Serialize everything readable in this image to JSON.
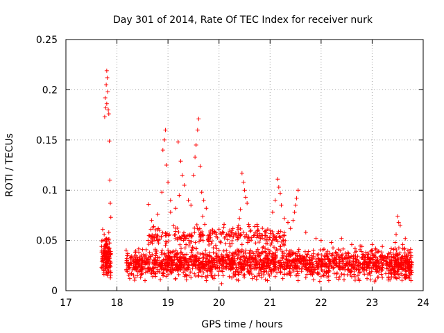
{
  "chart_data": {
    "type": "scatter",
    "title": "Day 301 of 2014, Rate Of TEC Index for receiver nurk",
    "xlabel": "GPS time / hours",
    "ylabel": "ROTI / TECUs",
    "xlim": [
      17,
      24
    ],
    "ylim": [
      0,
      0.25
    ],
    "xticks": [
      17,
      18,
      19,
      20,
      21,
      22,
      23,
      24
    ],
    "yticks": [
      0,
      0.05,
      0.1,
      0.15,
      0.2,
      0.25
    ],
    "xtick_labels": [
      "17",
      "18",
      "19",
      "20",
      "21",
      "22",
      "23",
      "24"
    ],
    "ytick_labels": [
      "0",
      "0.05",
      "0.1",
      "0.15",
      "0.2",
      "0.25"
    ],
    "grid": true,
    "marker": "+",
    "color": "#ff0000",
    "series": [
      {
        "name": "ROTI",
        "points": [
          [
            17.7,
            0.044
          ],
          [
            17.72,
            0.03
          ],
          [
            17.74,
            0.02
          ],
          [
            17.75,
            0.056
          ],
          [
            17.76,
            0.038
          ],
          [
            17.78,
            0.024
          ],
          [
            17.8,
            0.049
          ],
          [
            17.81,
            0.015
          ],
          [
            17.83,
            0.034
          ],
          [
            17.85,
            0.042
          ],
          [
            17.86,
            0.027
          ],
          [
            17.88,
            0.018
          ],
          [
            17.72,
            0.061
          ],
          [
            17.79,
            0.052
          ],
          [
            17.84,
            0.058
          ],
          [
            17.76,
            0.173
          ],
          [
            17.78,
            0.182
          ],
          [
            17.79,
            0.205
          ],
          [
            17.8,
            0.219
          ],
          [
            17.81,
            0.212
          ],
          [
            17.82,
            0.198
          ],
          [
            17.83,
            0.18
          ],
          [
            17.84,
            0.176
          ],
          [
            17.85,
            0.149
          ],
          [
            17.86,
            0.11
          ],
          [
            17.87,
            0.087
          ],
          [
            17.88,
            0.073
          ],
          [
            17.8,
            0.186
          ],
          [
            17.77,
            0.192
          ],
          [
            18.2,
            0.035
          ],
          [
            18.35,
            0.028
          ],
          [
            18.5,
            0.041
          ],
          [
            18.65,
            0.022
          ],
          [
            18.8,
            0.033
          ],
          [
            18.95,
            0.045
          ],
          [
            19.1,
            0.03
          ],
          [
            19.25,
            0.038
          ],
          [
            19.4,
            0.026
          ],
          [
            19.55,
            0.042
          ],
          [
            19.7,
            0.036
          ],
          [
            19.85,
            0.029
          ],
          [
            20.0,
            0.04
          ],
          [
            20.15,
            0.024
          ],
          [
            20.3,
            0.034
          ],
          [
            20.45,
            0.046
          ],
          [
            20.6,
            0.031
          ],
          [
            20.75,
            0.027
          ],
          [
            20.9,
            0.039
          ],
          [
            21.05,
            0.033
          ],
          [
            21.2,
            0.044
          ],
          [
            21.35,
            0.025
          ],
          [
            21.5,
            0.037
          ],
          [
            21.65,
            0.03
          ],
          [
            21.8,
            0.021
          ],
          [
            21.95,
            0.032
          ],
          [
            22.1,
            0.024
          ],
          [
            22.25,
            0.029
          ],
          [
            22.4,
            0.035
          ],
          [
            22.55,
            0.02
          ],
          [
            22.7,
            0.031
          ],
          [
            22.85,
            0.026
          ],
          [
            23.0,
            0.033
          ],
          [
            23.15,
            0.022
          ],
          [
            23.3,
            0.028
          ],
          [
            23.45,
            0.03
          ],
          [
            23.6,
            0.034
          ],
          [
            23.75,
            0.024
          ],
          [
            18.95,
            0.16
          ],
          [
            18.93,
            0.15
          ],
          [
            18.9,
            0.14
          ],
          [
            18.97,
            0.125
          ],
          [
            19.0,
            0.108
          ],
          [
            18.88,
            0.098
          ],
          [
            19.05,
            0.09
          ],
          [
            18.8,
            0.076
          ],
          [
            18.62,
            0.086
          ],
          [
            18.68,
            0.07
          ],
          [
            18.72,
            0.064
          ],
          [
            19.2,
            0.148
          ],
          [
            19.25,
            0.129
          ],
          [
            19.28,
            0.115
          ],
          [
            19.32,
            0.105
          ],
          [
            19.22,
            0.095
          ],
          [
            19.4,
            0.09
          ],
          [
            19.15,
            0.082
          ],
          [
            19.05,
            0.078
          ],
          [
            19.6,
            0.171
          ],
          [
            19.58,
            0.16
          ],
          [
            19.55,
            0.145
          ],
          [
            19.53,
            0.133
          ],
          [
            19.63,
            0.124
          ],
          [
            19.5,
            0.115
          ],
          [
            19.66,
            0.098
          ],
          [
            19.7,
            0.09
          ],
          [
            19.75,
            0.082
          ],
          [
            19.45,
            0.085
          ],
          [
            19.68,
            0.074
          ],
          [
            19.72,
            0.066
          ],
          [
            20.45,
            0.117
          ],
          [
            20.48,
            0.108
          ],
          [
            20.5,
            0.1
          ],
          [
            20.52,
            0.093
          ],
          [
            20.55,
            0.087
          ],
          [
            20.42,
            0.081
          ],
          [
            20.4,
            0.072
          ],
          [
            20.58,
            0.066
          ],
          [
            21.15,
            0.111
          ],
          [
            21.17,
            0.103
          ],
          [
            21.2,
            0.097
          ],
          [
            21.1,
            0.09
          ],
          [
            21.22,
            0.085
          ],
          [
            21.05,
            0.078
          ],
          [
            21.28,
            0.072
          ],
          [
            21.55,
            0.1
          ],
          [
            21.52,
            0.092
          ],
          [
            21.5,
            0.085
          ],
          [
            21.48,
            0.078
          ],
          [
            21.45,
            0.07
          ],
          [
            21.4,
            0.062
          ],
          [
            20.1,
            0.066
          ],
          [
            20.25,
            0.06
          ],
          [
            20.7,
            0.064
          ],
          [
            20.85,
            0.055
          ],
          [
            21.35,
            0.068
          ],
          [
            21.7,
            0.058
          ],
          [
            21.9,
            0.052
          ],
          [
            22.0,
            0.05
          ],
          [
            22.2,
            0.048
          ],
          [
            22.4,
            0.052
          ],
          [
            22.6,
            0.046
          ],
          [
            22.8,
            0.044
          ],
          [
            23.0,
            0.046
          ],
          [
            23.2,
            0.044
          ],
          [
            23.5,
            0.074
          ],
          [
            23.52,
            0.068
          ],
          [
            23.55,
            0.065
          ],
          [
            23.47,
            0.056
          ],
          [
            23.45,
            0.048
          ],
          [
            23.6,
            0.046
          ],
          [
            23.65,
            0.052
          ],
          [
            23.7,
            0.04
          ],
          [
            23.48,
            0.035
          ],
          [
            23.58,
            0.028
          ],
          [
            23.72,
            0.015
          ],
          [
            23.76,
            0.01
          ],
          [
            18.25,
            0.012
          ],
          [
            18.4,
            0.015
          ],
          [
            18.55,
            0.01
          ],
          [
            18.7,
            0.014
          ],
          [
            18.85,
            0.011
          ],
          [
            19.0,
            0.016
          ],
          [
            19.15,
            0.012
          ],
          [
            19.3,
            0.018
          ],
          [
            19.45,
            0.013
          ],
          [
            19.6,
            0.015
          ],
          [
            19.75,
            0.01
          ],
          [
            19.9,
            0.012
          ],
          [
            20.05,
            0.007
          ],
          [
            20.2,
            0.014
          ],
          [
            20.35,
            0.011
          ],
          [
            20.5,
            0.016
          ],
          [
            20.65,
            0.012
          ],
          [
            20.8,
            0.015
          ],
          [
            20.95,
            0.01
          ],
          [
            21.1,
            0.014
          ],
          [
            21.25,
            0.012
          ],
          [
            21.4,
            0.015
          ],
          [
            21.55,
            0.01
          ],
          [
            21.7,
            0.013
          ],
          [
            21.85,
            0.011
          ],
          [
            22.0,
            0.014
          ],
          [
            22.15,
            0.01
          ],
          [
            22.3,
            0.013
          ],
          [
            22.45,
            0.011
          ],
          [
            22.6,
            0.014
          ],
          [
            22.75,
            0.01
          ],
          [
            22.9,
            0.012
          ],
          [
            23.05,
            0.009
          ],
          [
            23.2,
            0.013
          ],
          [
            23.35,
            0.011
          ]
        ],
        "dense_bands": [
          {
            "x": [
              17.7,
              17.88
            ],
            "y": [
              0.008,
              0.06
            ],
            "count": 130
          },
          {
            "x": [
              18.18,
              23.4
            ],
            "y": [
              0.008,
              0.047
            ],
            "count": 1600
          },
          {
            "x": [
              18.6,
              21.3
            ],
            "y": [
              0.04,
              0.068
            ],
            "count": 260
          },
          {
            "x": [
              23.4,
              23.78
            ],
            "y": [
              0.004,
              0.048
            ],
            "count": 180
          }
        ]
      }
    ]
  }
}
